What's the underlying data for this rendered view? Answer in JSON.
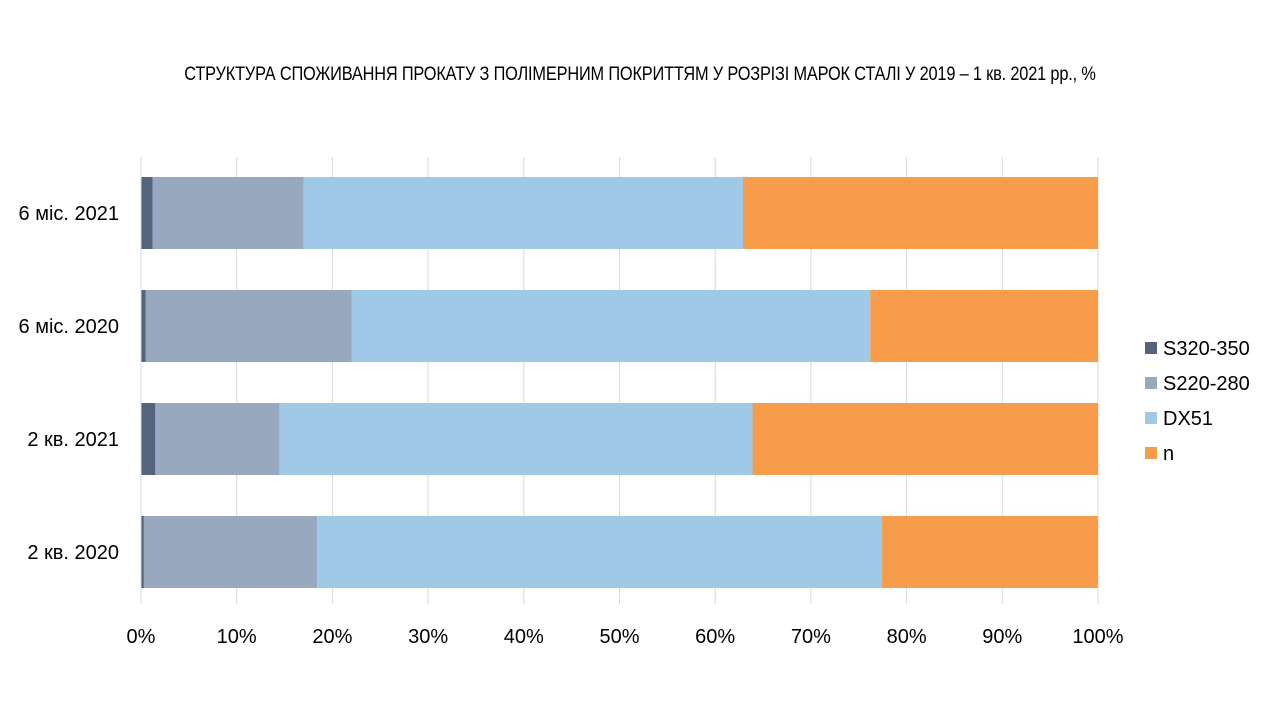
{
  "chart_data": {
    "type": "bar",
    "orientation": "horizontal",
    "stacked": "percent",
    "title": "СТРУКТУРА СПОЖИВАННЯ ПРОКАТУ З ПОЛІМЕРНИМ ПОКРИТТЯМ У РОЗРІЗІ МАРОК СТАЛІ У 2019 – 1 кв. 2021 рр., %",
    "categories": [
      "6 міс. 2021",
      "6 міс. 2020",
      "2 кв. 2021",
      "2 кв. 2020"
    ],
    "series": [
      {
        "name": "S320-350",
        "color": "#54637e",
        "values": [
          1.2,
          0.5,
          1.5,
          0.3
        ]
      },
      {
        "name": "S220-280",
        "color": "#97a8bf",
        "values": [
          15.8,
          21.5,
          13.0,
          18.1
        ]
      },
      {
        "name": "DX51",
        "color": "#9fc9e6",
        "values": [
          45.9,
          54.2,
          49.4,
          59.0
        ]
      },
      {
        "name": "n",
        "color": "#f79c4a",
        "values": [
          37.1,
          23.8,
          36.1,
          22.6
        ]
      }
    ],
    "x_ticks": [
      "0%",
      "10%",
      "20%",
      "30%",
      "40%",
      "50%",
      "60%",
      "70%",
      "80%",
      "90%",
      "100%"
    ],
    "xlim": [
      0,
      100
    ],
    "grid": true,
    "legend_position": "right"
  }
}
